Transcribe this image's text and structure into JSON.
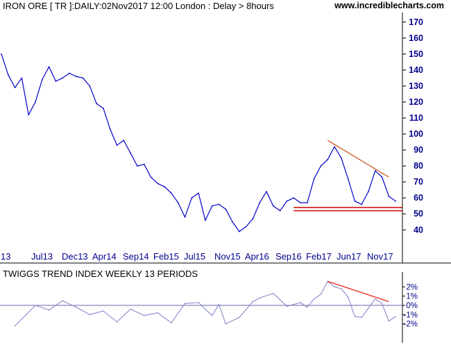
{
  "header": {
    "title": "IRON ORE [ TR ]:DAILY:02Nov2017 12:00 London : Delay > 8hours",
    "site": "www.incrediblecharts.com"
  },
  "chart_data": [
    {
      "type": "line",
      "name": "price",
      "title": "IRON ORE [ TR ]:DAILY:02Nov2017 12:00 London : Delay > 8hours",
      "x_tick_labels": [
        "13",
        "Jul13",
        "Dec13",
        "Apr14",
        "Sep14",
        "Feb15",
        "Jul15",
        "Nov15",
        "Apr16",
        "Sep16",
        "Feb17",
        "Jun17",
        "Nov17"
      ],
      "y_ticks": [
        40,
        50,
        60,
        70,
        80,
        90,
        100,
        110,
        120,
        130,
        140,
        150,
        160,
        170
      ],
      "ylim": [
        31,
        176
      ],
      "y_axis_side": "right",
      "grid": false,
      "line_color": "#0000cc",
      "series": [
        {
          "x": [
            "Jan13",
            "Feb13",
            "Mar13",
            "Apr13",
            "May13",
            "Jun13",
            "Jul13",
            "Aug13",
            "Sep13",
            "Oct13",
            "Nov13",
            "Dec13",
            "Jan14",
            "Feb14",
            "Mar14",
            "Apr14",
            "May14",
            "Jun14",
            "Jul14",
            "Aug14",
            "Sep14",
            "Oct14",
            "Nov14",
            "Dec14",
            "Jan15",
            "Feb15",
            "Mar15",
            "Apr15",
            "May15",
            "Jun15",
            "Jul15",
            "Aug15",
            "Sep15",
            "Oct15",
            "Nov15",
            "Dec15",
            "Jan16",
            "Feb16",
            "Mar16",
            "Apr16",
            "May16",
            "Jun16",
            "Jul16",
            "Aug16",
            "Sep16",
            "Oct16",
            "Nov16",
            "Dec16",
            "Jan17",
            "Feb17",
            "Mar17",
            "Apr17",
            "May17",
            "Jun17",
            "Jul17",
            "Aug17",
            "Sep17",
            "Oct17",
            "Nov17"
          ],
          "values": [
            150,
            137,
            129,
            135,
            112,
            120,
            134,
            142,
            133,
            135,
            138,
            136,
            135,
            130,
            119,
            116,
            103,
            93,
            96,
            88,
            80,
            81,
            73,
            69,
            67,
            63,
            57,
            48,
            60,
            63,
            46,
            55,
            56,
            53,
            45,
            39,
            42,
            47,
            57,
            64,
            55,
            52,
            58,
            60,
            57,
            57,
            72,
            80,
            84,
            92,
            85,
            72,
            58,
            56,
            64,
            77,
            73,
            61,
            58
          ]
        }
      ],
      "annotations": [
        {
          "type": "trendline",
          "color": "#cc5522",
          "points": [
            [
              "Jan17",
              96
            ],
            [
              "Oct17",
              73
            ]
          ]
        },
        {
          "type": "horizontal_line",
          "color": "#cc0000",
          "value": 54
        },
        {
          "type": "horizontal_line",
          "color": "#cc0000",
          "value": 52
        }
      ]
    },
    {
      "type": "line",
      "name": "twiggs-trend-index",
      "title": "TWIGGS TREND INDEX WEEKLY 13 PERIODS",
      "y_tick_labels": [
        "2%",
        "1%",
        "0%",
        "-1%",
        "-2%"
      ],
      "y_ticks": [
        2,
        1,
        0,
        -1,
        -2
      ],
      "ylim": [
        -3.3,
        3.0
      ],
      "y_axis_side": "right",
      "zero_line": true,
      "line_color": "#8888cc",
      "series": [
        {
          "x": [
            "Mar13",
            "Jun13",
            "Aug13",
            "Oct13",
            "Dec13",
            "Feb14",
            "Apr14",
            "Jun14",
            "Aug14",
            "Oct14",
            "Dec14",
            "Feb15",
            "Apr15",
            "Jun15",
            "Aug15",
            "Sep15",
            "Oct15",
            "Dec15",
            "Feb16",
            "Mar16",
            "May16",
            "Jul16",
            "Sep16",
            "Oct16",
            "Nov16",
            "Dec16",
            "Jan17",
            "Feb17",
            "Mar17",
            "Apr17",
            "May17",
            "Jun17",
            "Jul17",
            "Aug17",
            "Sep17",
            "Oct17",
            "Nov17"
          ],
          "values": [
            -2.2,
            0.0,
            -0.5,
            0.5,
            -0.2,
            -1.0,
            -0.6,
            -1.8,
            -0.4,
            -1.1,
            -0.8,
            -1.9,
            0.2,
            0.3,
            -1.1,
            0.1,
            -2.0,
            -1.3,
            0.4,
            0.8,
            1.3,
            -0.1,
            0.3,
            -0.2,
            0.7,
            1.2,
            2.6,
            2.0,
            1.8,
            0.9,
            -1.2,
            -1.3,
            -0.3,
            0.7,
            0.2,
            -1.7,
            -1.2
          ]
        }
      ],
      "annotations": [
        {
          "type": "trendline",
          "color": "#ee2222",
          "points": [
            [
              "Jan17",
              2.6
            ],
            [
              "Oct17",
              0.4
            ]
          ]
        }
      ]
    }
  ]
}
